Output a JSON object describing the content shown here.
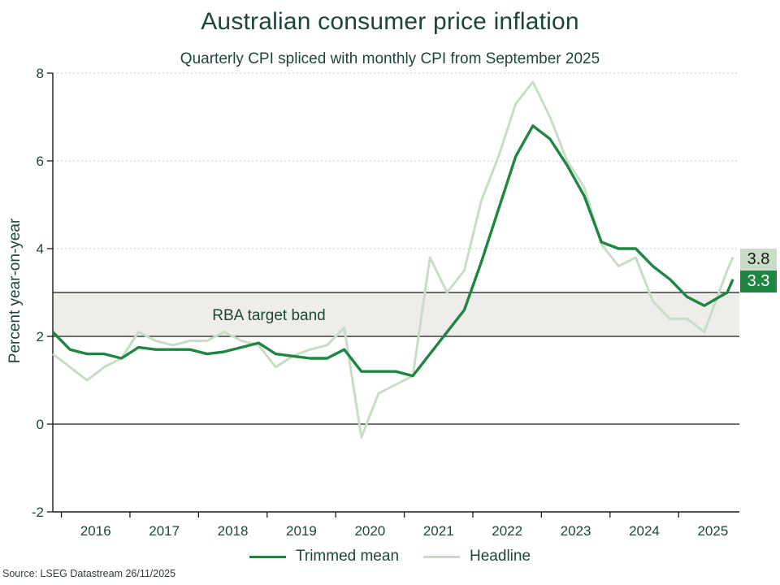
{
  "chart_data": {
    "type": "line",
    "title": "Australian consumer price inflation",
    "subtitle": "Quarterly CPI spliced with monthly CPI from September 2025",
    "ylabel": "Percent year-on-year",
    "ylim": [
      -2,
      8
    ],
    "y_ticks": [
      8,
      6,
      4,
      2,
      0,
      -2
    ],
    "gridlines": {
      "dotted_at": [
        8,
        6,
        4
      ],
      "solid_at": [
        0
      ]
    },
    "x_tick_years": [
      "2016",
      "2017",
      "2018",
      "2019",
      "2020",
      "2021",
      "2022",
      "2023",
      "2024",
      "2025"
    ],
    "x_months_offset": [
      0,
      3,
      6,
      9,
      12,
      15,
      18,
      21,
      24,
      27,
      30,
      33,
      36,
      39,
      42,
      45,
      48,
      51,
      54,
      57,
      60,
      63,
      66,
      69,
      72,
      75,
      78,
      81,
      84,
      87,
      90,
      93,
      96,
      99,
      102,
      105,
      108,
      111,
      114,
      118,
      119
    ],
    "band": {
      "label": "RBA target band",
      "from": 2,
      "to": 3,
      "fill": "#eeede9",
      "edge_color": "#1a1a1a"
    },
    "series": [
      {
        "name": "Trimmed mean",
        "color": "#1e8642",
        "end_label": "3.3",
        "end_label_text_color": "#ffffff",
        "values": [
          2.1,
          1.7,
          1.6,
          1.6,
          1.5,
          1.75,
          1.7,
          1.7,
          1.7,
          1.6,
          1.65,
          1.75,
          1.85,
          1.6,
          1.55,
          1.5,
          1.5,
          1.7,
          1.2,
          1.2,
          1.2,
          1.1,
          1.6,
          2.1,
          2.6,
          3.7,
          4.9,
          6.1,
          6.8,
          6.5,
          5.9,
          5.2,
          4.15,
          4.0,
          4.0,
          3.6,
          3.3,
          2.9,
          2.7,
          3.0,
          3.3
        ]
      },
      {
        "name": "Headline",
        "color": "#c8dcc6",
        "end_label": "3.8",
        "end_label_text_color": "#1a1a1a",
        "values": [
          1.6,
          1.3,
          1.0,
          1.3,
          1.5,
          2.1,
          1.9,
          1.8,
          1.9,
          1.9,
          2.1,
          1.9,
          1.8,
          1.3,
          1.55,
          1.7,
          1.8,
          2.2,
          -0.3,
          0.7,
          0.9,
          1.1,
          3.8,
          3.0,
          3.5,
          5.1,
          6.1,
          7.3,
          7.8,
          7.0,
          6.0,
          5.4,
          4.1,
          3.6,
          3.8,
          2.8,
          2.4,
          2.4,
          2.1,
          3.5,
          3.8
        ]
      }
    ],
    "legend_position": "bottom-center"
  },
  "footer": {
    "source": "Source: LSEG Datastream 26/11/2025"
  },
  "colors": {
    "text_green": "#1d4637",
    "axis_line": "#1a1a1a",
    "grid_dotted": "#c8c8c8",
    "background": "#ffffff"
  }
}
